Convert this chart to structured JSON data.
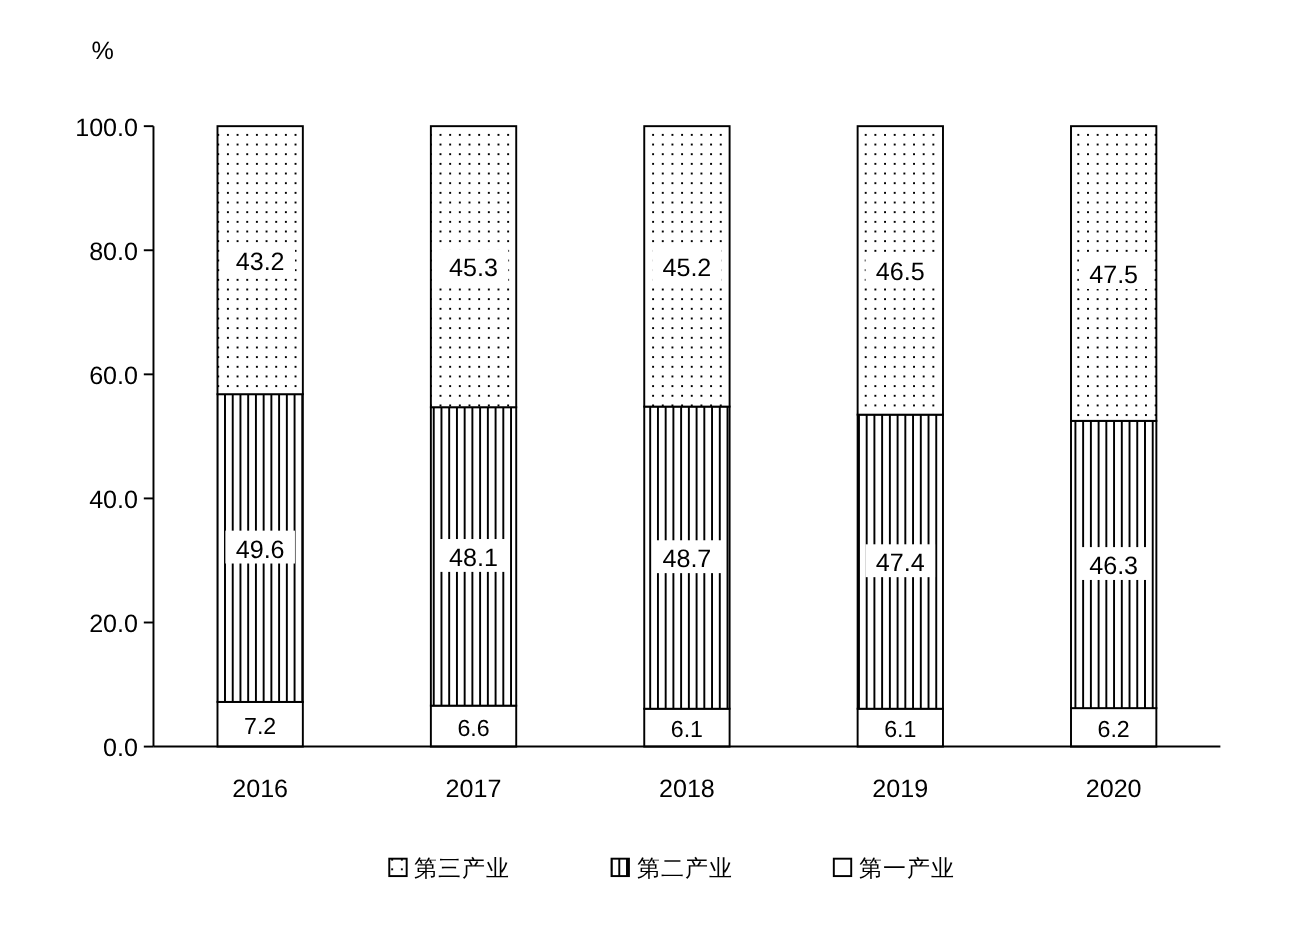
{
  "chart_data": {
    "type": "bar",
    "stacked": true,
    "ylabel": "%",
    "categories": [
      "2016",
      "2017",
      "2018",
      "2019",
      "2020"
    ],
    "series": [
      {
        "name": "第一产业",
        "color": "#ffffff",
        "values": [
          7.2,
          6.6,
          6.1,
          6.1,
          6.2
        ]
      },
      {
        "name": "第二产业",
        "color": "#000000",
        "values": [
          49.6,
          48.1,
          48.7,
          47.4,
          46.3
        ]
      },
      {
        "name": "第三产业",
        "color": "#000000",
        "values": [
          43.2,
          45.3,
          45.2,
          46.5,
          47.5
        ]
      }
    ],
    "ylim": [
      0,
      100
    ],
    "yticks": [
      {
        "value": 0,
        "label": "0.0"
      },
      {
        "value": 20,
        "label": "20.0"
      },
      {
        "value": 40,
        "label": "40.0"
      },
      {
        "value": 60,
        "label": "60.0"
      },
      {
        "value": 80,
        "label": "80.0"
      },
      {
        "value": 100,
        "label": "100.0"
      }
    ],
    "data_labels": true,
    "legend": "bottom"
  }
}
